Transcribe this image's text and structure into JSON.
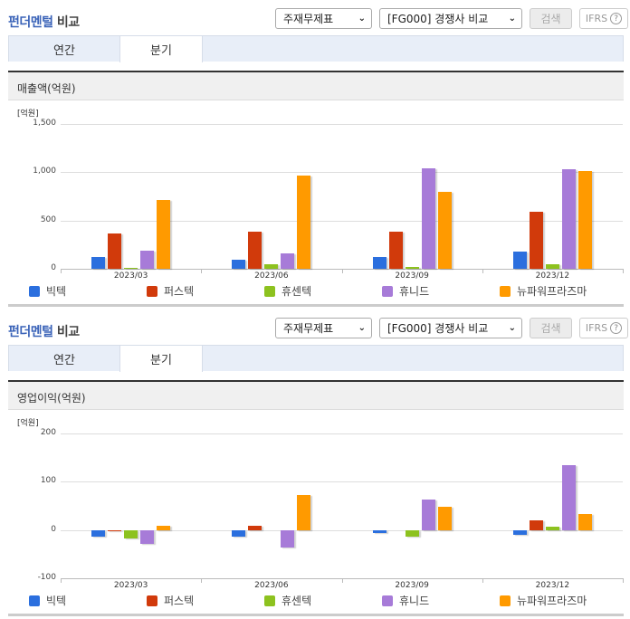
{
  "sections": [
    {
      "title_blue": "펀더멘털",
      "title_dark": "비교",
      "select1": "주재무제표",
      "select2": "[FG000] 경쟁사 비교",
      "search_label": "검색",
      "ifrs_label": "IFRS",
      "ifrs_help": "?",
      "tabs": [
        "연간",
        "분기"
      ],
      "active_tab": "분기",
      "metric_title": "매출액(억원)",
      "unit_label": "[억원]"
    },
    {
      "title_blue": "펀더멘털",
      "title_dark": "비교",
      "select1": "주재무제표",
      "select2": "[FG000] 경쟁사 비교",
      "search_label": "검색",
      "ifrs_label": "IFRS",
      "ifrs_help": "?",
      "tabs": [
        "연간",
        "분기"
      ],
      "active_tab": "분기",
      "metric_title": "영업이익(억원)",
      "unit_label": "[억원]"
    }
  ],
  "colors": {
    "빅텍": "#2b6fde",
    "퍼스텍": "#d13a0b",
    "휴센텍": "#8dc21f",
    "휴니드": "#a77bd8",
    "뉴파워프라즈마": "#ff9a00"
  },
  "chart_data": [
    {
      "type": "bar",
      "title": "매출액(억원)",
      "xlabel": "",
      "ylabel": "[억원]",
      "categories": [
        "2023/03",
        "2023/06",
        "2023/09",
        "2023/12"
      ],
      "yticks": [
        "1,500",
        "1,000",
        "500",
        "0"
      ],
      "ylim": [
        0,
        1500
      ],
      "grid": true,
      "legend_position": "bottom",
      "series": [
        {
          "name": "빅텍",
          "color": "#2b6fde",
          "values": [
            123,
            95,
            125,
            180
          ]
        },
        {
          "name": "퍼스텍",
          "color": "#d13a0b",
          "values": [
            370,
            380,
            380,
            595
          ]
        },
        {
          "name": "휴센텍",
          "color": "#8dc21f",
          "values": [
            10,
            50,
            20,
            50
          ]
        },
        {
          "name": "휴니드",
          "color": "#a77bd8",
          "values": [
            190,
            155,
            1045,
            1035
          ]
        },
        {
          "name": "뉴파워프라즈마",
          "color": "#ff9a00",
          "values": [
            710,
            970,
            795,
            1015
          ]
        }
      ]
    },
    {
      "type": "bar",
      "title": "영업이익(억원)",
      "xlabel": "",
      "ylabel": "[억원]",
      "categories": [
        "2023/03",
        "2023/06",
        "2023/09",
        "2023/12"
      ],
      "yticks": [
        "200",
        "100",
        "0",
        "-100"
      ],
      "ylim": [
        -100,
        200
      ],
      "grid": true,
      "legend_position": "bottom",
      "series": [
        {
          "name": "빅텍",
          "color": "#2b6fde",
          "values": [
            -14,
            -14,
            -6,
            -10
          ]
        },
        {
          "name": "퍼스텍",
          "color": "#d13a0b",
          "values": [
            -3,
            8,
            0,
            20
          ]
        },
        {
          "name": "휴센텍",
          "color": "#8dc21f",
          "values": [
            -18,
            0,
            -13,
            7
          ]
        },
        {
          "name": "휴니드",
          "color": "#a77bd8",
          "values": [
            -29,
            -37,
            64,
            135
          ]
        },
        {
          "name": "뉴파워프라즈마",
          "color": "#ff9a00",
          "values": [
            8,
            72,
            48,
            33
          ]
        }
      ]
    }
  ]
}
